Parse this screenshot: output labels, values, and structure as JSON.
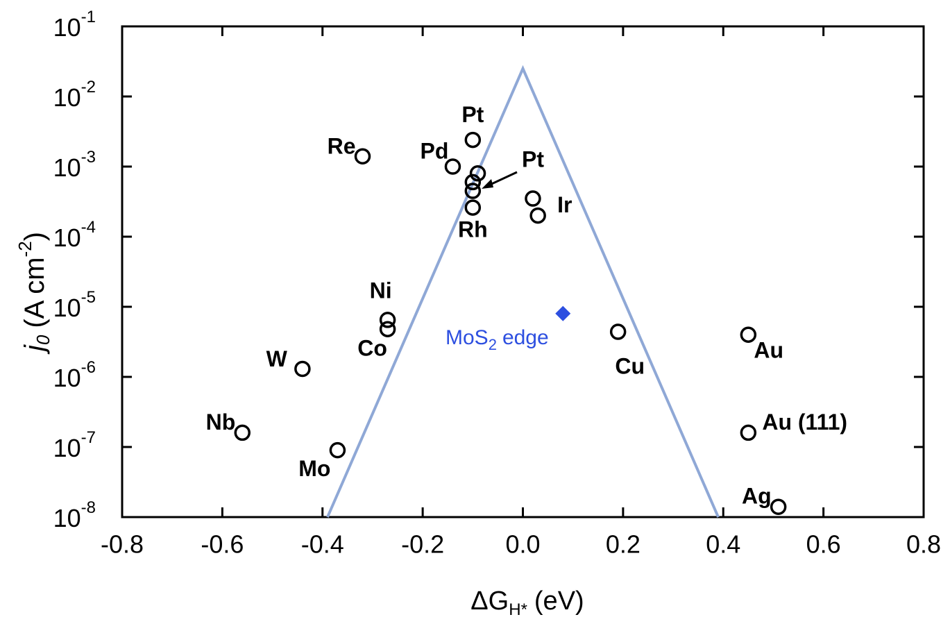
{
  "chart_data": {
    "type": "scatter",
    "log_y": true,
    "xlabel": {
      "text": "ΔG",
      "sub": "H*",
      "suffix": "(eV)"
    },
    "ylabel": {
      "text": "j",
      "sub": "0",
      "suffix": "(A cm",
      "sup": "-2",
      "end": ")"
    },
    "xlim": [
      -0.8,
      0.8
    ],
    "ylim": [
      1e-08,
      0.1
    ],
    "xticks": [
      -0.8,
      -0.6,
      -0.4,
      -0.2,
      {
        "value": 0,
        "label": "0.0"
      },
      0.2,
      0.4,
      0.6,
      0.8
    ],
    "yticks": [
      {
        "value": 0.1,
        "label": "10",
        "exponent": "-1"
      },
      {
        "value": 0.01,
        "label": "10",
        "exponent": "-2"
      },
      {
        "value": 0.001,
        "label": "10",
        "exponent": "-3"
      },
      {
        "value": 0.0001,
        "label": "10",
        "exponent": "-4"
      },
      {
        "value": 1e-05,
        "label": "10",
        "exponent": "-5"
      },
      {
        "value": 1e-06,
        "label": "10",
        "exponent": "-6"
      },
      {
        "value": 1e-07,
        "label": "10",
        "exponent": "-7"
      },
      {
        "value": 1e-08,
        "label": "10",
        "exponent": "-8"
      }
    ],
    "points": {
      "color": "#000000",
      "x": [
        -0.32,
        -0.14,
        -0.1,
        -0.09,
        -0.1,
        -0.1,
        -0.1,
        0.02,
        0.03,
        -0.27,
        -0.27,
        -0.44,
        -0.56,
        -0.37,
        0.19,
        0.45,
        0.45,
        0.51
      ],
      "values": [
        0.0014,
        0.001,
        0.0024,
        0.0008,
        0.0006,
        0.00045,
        0.00026,
        0.00035,
        0.0002,
        6.5e-06,
        4.8e-06,
        1.3e-06,
        1.6e-07,
        9e-08,
        4.4e-06,
        4e-06,
        1.6e-07,
        1.4e-08
      ],
      "labels": [
        "Re",
        "Pd",
        "Pt",
        null,
        null,
        null,
        "Rh",
        null,
        "Ir",
        "Ni",
        "Co",
        "W",
        "Nb",
        "Mo",
        "Cu",
        "Au",
        "Au (111)",
        "Ag"
      ]
    },
    "annotation": "Pt",
    "volcano": {
      "color": "#8fa8d6",
      "x": [
        -0.39,
        0,
        0.39
      ],
      "values": [
        1e-08,
        0.025,
        1e-08
      ]
    },
    "mos2": {
      "color": "#2d4fe0",
      "x": 0.08,
      "value": 8e-06,
      "label": "MoS",
      "sub": "2",
      "suffix": "edge"
    }
  }
}
